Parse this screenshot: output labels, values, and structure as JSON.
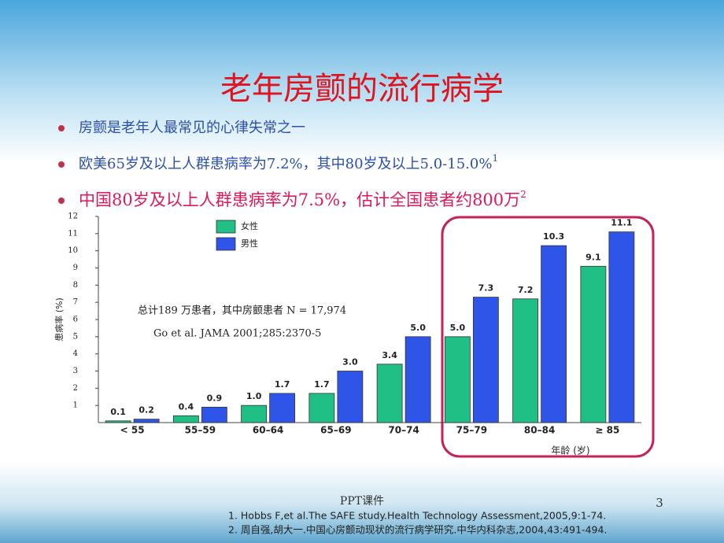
{
  "slide": {
    "title": "老年房颤的流行病学",
    "bullets": [
      {
        "text": "房颤是老年人最常见的心律失常之一"
      },
      {
        "text": "欧美65岁及以上人群患病率为7.2%，其中80岁及以上5.0-15.0%",
        "ref": "1"
      },
      {
        "text": "中国80岁及以上人群患病率为7.5%，估计全国患者约800万",
        "ref": "2"
      }
    ],
    "footnotes": [
      "1.   Hobbs F,et al.The SAFE study.Health Technology Assessment,2005,9:1-74.",
      "2.   周自强,胡大一.中国心房颤动现状的流行病学研究.中华内科杂志,2004,43:491-494."
    ],
    "footer": "PPT课件",
    "page_number": "3"
  },
  "chart_data": {
    "type": "bar",
    "y_label": "患病率 (%)",
    "x_label": "年龄 (岁)",
    "annotations": [
      "总计189 万患者，其中房颤患者 N = 17,974",
      "Go et al. JAMA 2001;285:2370-5"
    ],
    "categories": [
      "< 55",
      "55–59",
      "60–64",
      "65–69",
      "70–74",
      "75–79",
      "80–84",
      "≥ 85"
    ],
    "series": [
      {
        "name": "女性",
        "color": "#1fbf86",
        "values": [
          0.1,
          0.4,
          1.0,
          1.7,
          3.4,
          5.0,
          7.2,
          9.1
        ],
        "value_labels": [
          "0.1",
          "0.4",
          "1.0",
          "1.7",
          "3.4",
          "5.0",
          "7.2",
          "9.1"
        ]
      },
      {
        "name": "男性",
        "color": "#2f55e8",
        "values": [
          0.2,
          0.9,
          1.7,
          3.0,
          5.0,
          7.3,
          10.3,
          11.1
        ],
        "value_labels": [
          "0.2",
          "0.9",
          "1.7",
          "3.0",
          "5.0",
          "7.3",
          "10.3",
          "11.1"
        ]
      }
    ],
    "ylim": [
      0,
      12
    ],
    "yticks": [
      1,
      2,
      3,
      4,
      5,
      6,
      7,
      8,
      9,
      10,
      11,
      12
    ],
    "grid": false
  }
}
